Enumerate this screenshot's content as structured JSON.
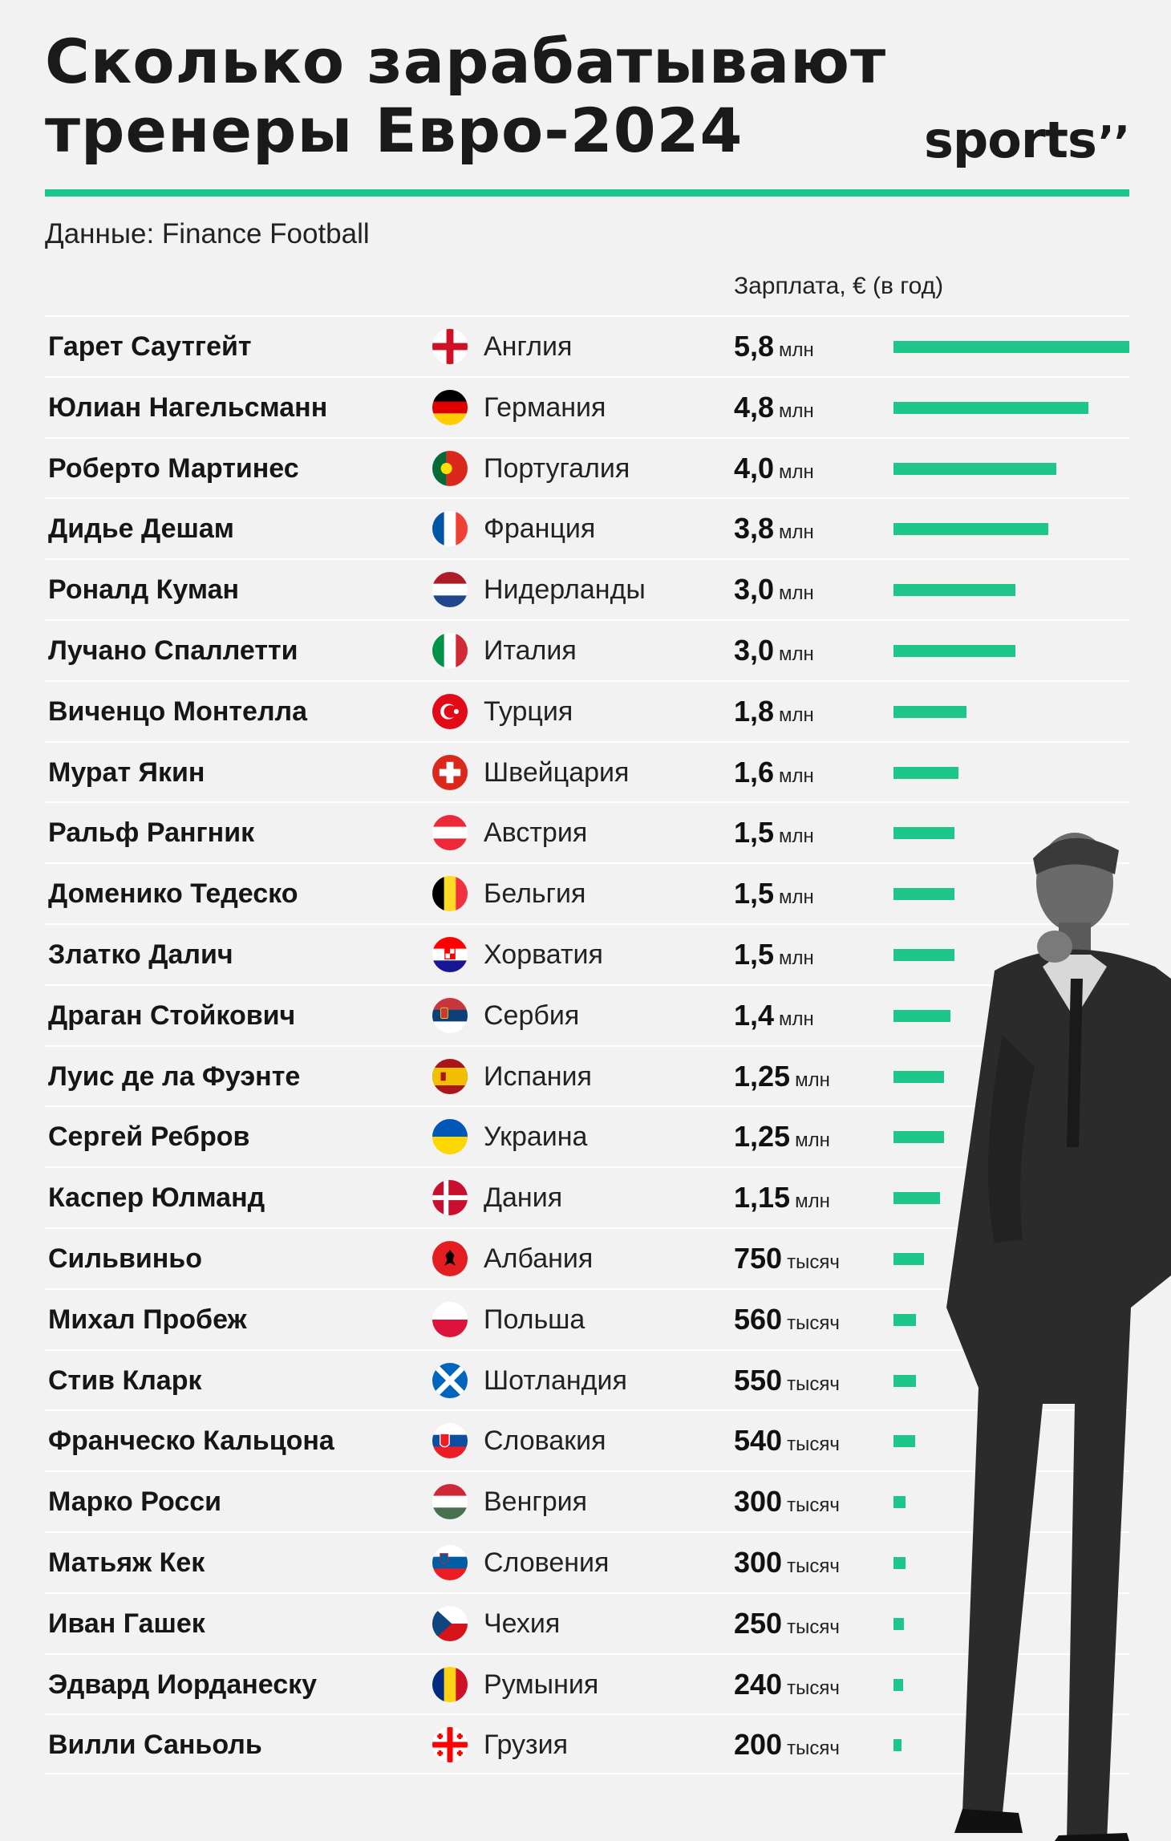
{
  "chart_data": {
    "type": "bar",
    "orientation": "horizontal",
    "title_lines": [
      "Сколько зарабатывают",
      "тренеры Евро-2024"
    ],
    "source": "Данные: Finance Football",
    "value_header": "Зарплата, € (в год)",
    "unit_label": "€ per year",
    "xlim": [
      0,
      5.8
    ],
    "rows": [
      {
        "name": "Гарет Саутгейт",
        "country": "Англия",
        "flag": "eng",
        "value": 5.8,
        "num": "5,8",
        "unit": "млн"
      },
      {
        "name": "Юлиан Нагельсманн",
        "country": "Германия",
        "flag": "ger",
        "value": 4.8,
        "num": "4,8",
        "unit": "млн"
      },
      {
        "name": "Роберто Мартинес",
        "country": "Португалия",
        "flag": "por",
        "value": 4.0,
        "num": "4,0",
        "unit": "млн"
      },
      {
        "name": "Дидье Дешам",
        "country": "Франция",
        "flag": "fra",
        "value": 3.8,
        "num": "3,8",
        "unit": "млн"
      },
      {
        "name": "Роналд Куман",
        "country": "Нидерланды",
        "flag": "ned",
        "value": 3.0,
        "num": "3,0",
        "unit": "млн"
      },
      {
        "name": "Лучано Спаллетти",
        "country": "Италия",
        "flag": "ita",
        "value": 3.0,
        "num": "3,0",
        "unit": "млн"
      },
      {
        "name": "Виченцо Монтелла",
        "country": "Турция",
        "flag": "tur",
        "value": 1.8,
        "num": "1,8",
        "unit": "млн"
      },
      {
        "name": "Мурат Якин",
        "country": "Швейцария",
        "flag": "sui",
        "value": 1.6,
        "num": "1,6",
        "unit": "млн"
      },
      {
        "name": "Ральф Рангник",
        "country": "Австрия",
        "flag": "aut",
        "value": 1.5,
        "num": "1,5",
        "unit": "млн"
      },
      {
        "name": "Доменико Тедеско",
        "country": "Бельгия",
        "flag": "bel",
        "value": 1.5,
        "num": "1,5",
        "unit": "млн"
      },
      {
        "name": "Златко Далич",
        "country": "Хорватия",
        "flag": "cro",
        "value": 1.5,
        "num": "1,5",
        "unit": "млн"
      },
      {
        "name": "Драган Стойкович",
        "country": "Сербия",
        "flag": "srb",
        "value": 1.4,
        "num": "1,4",
        "unit": "млн"
      },
      {
        "name": "Луис де ла Фуэнте",
        "country": "Испания",
        "flag": "esp",
        "value": 1.25,
        "num": "1,25",
        "unit": "млн"
      },
      {
        "name": "Сергей Ребров",
        "country": "Украина",
        "flag": "ukr",
        "value": 1.25,
        "num": "1,25",
        "unit": "млн"
      },
      {
        "name": "Каспер Юлманд",
        "country": "Дания",
        "flag": "den",
        "value": 1.15,
        "num": "1,15",
        "unit": "млн"
      },
      {
        "name": "Сильвиньо",
        "country": "Албания",
        "flag": "alb",
        "value": 0.75,
        "num": "750",
        "unit": "тысяч"
      },
      {
        "name": "Михал Пробеж",
        "country": "Польша",
        "flag": "pol",
        "value": 0.56,
        "num": "560",
        "unit": "тысяч"
      },
      {
        "name": "Стив Кларк",
        "country": "Шотландия",
        "flag": "sco",
        "value": 0.55,
        "num": "550",
        "unit": "тысяч"
      },
      {
        "name": "Франческо Кальцона",
        "country": "Словакия",
        "flag": "svk",
        "value": 0.54,
        "num": "540",
        "unit": "тысяч"
      },
      {
        "name": "Марко Росси",
        "country": "Венгрия",
        "flag": "hun",
        "value": 0.3,
        "num": "300",
        "unit": "тысяч"
      },
      {
        "name": "Матьяж Кек",
        "country": "Словения",
        "flag": "svn",
        "value": 0.3,
        "num": "300",
        "unit": "тысяч"
      },
      {
        "name": "Иван Гашек",
        "country": "Чехия",
        "flag": "cze",
        "value": 0.25,
        "num": "250",
        "unit": "тысяч"
      },
      {
        "name": "Эдвард Иорданеску",
        "country": "Румыния",
        "flag": "rou",
        "value": 0.24,
        "num": "240",
        "unit": "тысяч"
      },
      {
        "name": "Вилли Саньоль",
        "country": "Грузия",
        "flag": "geo",
        "value": 0.2,
        "num": "200",
        "unit": "тысяч"
      }
    ]
  },
  "brand": {
    "logo_text": "sports",
    "logo_mark": "’’"
  },
  "colors": {
    "accent": "#1ec68a",
    "background": "#f2f2f2",
    "text": "#161616"
  },
  "decor": {
    "illustration": "coach-photo-grayscale"
  }
}
